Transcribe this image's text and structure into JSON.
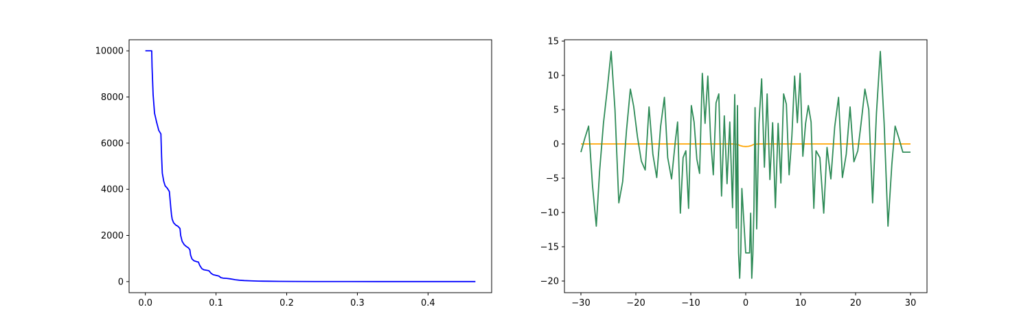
{
  "colors": {
    "background": "#ffffff",
    "axes": "#000000",
    "line_blue": "#0000ff",
    "line_green": "#2e8b57",
    "line_orange": "#ffa500"
  },
  "chart_data": [
    {
      "type": "line",
      "xlim": [
        -0.023,
        0.49
      ],
      "ylim": [
        -480,
        10480
      ],
      "xticks": [
        0.0,
        0.1,
        0.2,
        0.3,
        0.4
      ],
      "xtick_labels": [
        "0.0",
        "0.1",
        "0.2",
        "0.3",
        "0.4"
      ],
      "yticks": [
        0,
        2000,
        4000,
        6000,
        8000,
        10000
      ],
      "ytick_labels": [
        "0",
        "2000",
        "4000",
        "6000",
        "8000",
        "10000"
      ],
      "grid": false,
      "series": [
        {
          "color": "#0000ff",
          "x": [
            0.0,
            0.009,
            0.0095,
            0.011,
            0.013,
            0.016,
            0.019,
            0.021,
            0.022,
            0.023,
            0.024,
            0.026,
            0.028,
            0.031,
            0.034,
            0.036,
            0.037,
            0.038,
            0.04,
            0.043,
            0.046,
            0.049,
            0.05,
            0.052,
            0.055,
            0.058,
            0.061,
            0.063,
            0.064,
            0.066,
            0.069,
            0.073,
            0.075,
            0.077,
            0.08,
            0.083,
            0.087,
            0.09,
            0.093,
            0.096,
            0.1,
            0.104,
            0.107,
            0.11,
            0.115,
            0.12,
            0.124,
            0.127,
            0.133,
            0.14,
            0.15,
            0.16,
            0.175,
            0.19,
            0.21,
            0.24,
            0.28,
            0.33,
            0.4,
            0.467
          ],
          "y": [
            10000,
            10000,
            9300,
            8100,
            7300,
            6900,
            6550,
            6450,
            6400,
            5400,
            4700,
            4350,
            4150,
            4050,
            3900,
            3200,
            2900,
            2700,
            2550,
            2450,
            2400,
            2300,
            2000,
            1750,
            1600,
            1520,
            1460,
            1380,
            1150,
            980,
            900,
            860,
            850,
            700,
            560,
            510,
            490,
            470,
            360,
            300,
            270,
            240,
            170,
            150,
            140,
            120,
            100,
            80,
            60,
            45,
            32,
            22,
            15,
            10,
            6,
            3,
            2,
            1,
            1,
            1
          ]
        }
      ]
    },
    {
      "type": "line",
      "xlim": [
        -33,
        33
      ],
      "ylim": [
        -21.7,
        15.2
      ],
      "xticks": [
        -30,
        -20,
        -10,
        0,
        10,
        20,
        30
      ],
      "xtick_labels": [
        "−30",
        "−20",
        "−10",
        "0",
        "10",
        "20",
        "30"
      ],
      "yticks": [
        -20,
        -15,
        -10,
        -5,
        0,
        5,
        10,
        15
      ],
      "ytick_labels": [
        "−20",
        "−15",
        "−10",
        "−5",
        "0",
        "5",
        "10",
        "15"
      ],
      "grid": false,
      "series": [
        {
          "color": "#ffa500",
          "x": [
            -30,
            -2.5,
            -1.5,
            -1,
            -0.5,
            0,
            0.5,
            1,
            1.5,
            2.5,
            30
          ],
          "y": [
            0,
            0,
            -0.05,
            -0.25,
            -0.35,
            -0.38,
            -0.35,
            -0.25,
            -0.05,
            0,
            0
          ]
        },
        {
          "color": "#2e8b57",
          "x": [
            -30,
            -29.3,
            -28.6,
            -27.9,
            -27.2,
            -26.6,
            -25.9,
            -25.2,
            -24.5,
            -23.8,
            -23.1,
            -22.4,
            -21.7,
            -21.0,
            -20.4,
            -19.7,
            -19.0,
            -18.3,
            -17.6,
            -16.9,
            -16.2,
            -15.5,
            -14.8,
            -14.2,
            -13.5,
            -12.8,
            -12.4,
            -11.9,
            -11.4,
            -10.9,
            -10.4,
            -9.9,
            -9.4,
            -8.9,
            -8.4,
            -7.9,
            -7.4,
            -6.9,
            -6.4,
            -5.9,
            -5.4,
            -4.9,
            -4.4,
            -3.9,
            -3.4,
            -2.9,
            -2.4,
            -2.0,
            -1.7,
            -1.5,
            -1.3,
            -1.1,
            -0.9,
            -0.7,
            0.0,
            0.7,
            0.9,
            1.1,
            1.3,
            1.5,
            1.7,
            2.0,
            2.4,
            2.9,
            3.4,
            3.9,
            4.4,
            4.9,
            5.4,
            5.9,
            6.4,
            6.9,
            7.4,
            7.9,
            8.4,
            8.9,
            9.4,
            9.9,
            10.4,
            10.9,
            11.4,
            11.9,
            12.4,
            12.8,
            13.5,
            14.2,
            14.8,
            15.5,
            16.2,
            16.9,
            17.6,
            18.3,
            19.0,
            19.7,
            20.4,
            21.0,
            21.7,
            22.4,
            23.1,
            23.8,
            24.5,
            25.2,
            25.9,
            26.6,
            27.2,
            27.9,
            28.6,
            29.3,
            30
          ],
          "y": [
            -1.2,
            0.8,
            2.6,
            -6,
            -12,
            -4,
            3,
            8,
            13.5,
            5,
            -8.6,
            -5.5,
            2,
            8,
            5.5,
            1,
            -2.5,
            -3.8,
            5.4,
            -1.5,
            -4.9,
            2.5,
            6.8,
            -2,
            -5.1,
            0.5,
            3.2,
            -10.1,
            -2,
            -1.0,
            -9.4,
            5.6,
            3.2,
            -2.2,
            -4.3,
            10.3,
            3.0,
            9.9,
            1.0,
            -4.5,
            6.0,
            7.3,
            -7.6,
            4.1,
            -5.8,
            3.2,
            -9.3,
            7.2,
            -12.3,
            5.6,
            -15.9,
            -19.6,
            -15.8,
            -6.5,
            -15.9,
            -15.9,
            -10.1,
            -19.6,
            -16.1,
            -9.3,
            5.3,
            -12.4,
            3.0,
            9.5,
            -3.4,
            7.3,
            -5.2,
            3.1,
            -9.3,
            3.0,
            -5.7,
            7.3,
            5.8,
            -4.5,
            1.1,
            9.9,
            3.1,
            10.3,
            -1.8,
            3.0,
            5.6,
            3.2,
            -9.4,
            -1.0,
            -2.0,
            -10.1,
            -0.5,
            -5.1,
            2.5,
            6.8,
            -4.9,
            -1.5,
            5.4,
            -2.6,
            -1.0,
            3.0,
            8.0,
            5.0,
            -8.6,
            4.5,
            13.5,
            3.0,
            -12.0,
            -3.0,
            2.6,
            0.8,
            -1.2,
            -1.2,
            -1.2
          ]
        }
      ]
    }
  ]
}
